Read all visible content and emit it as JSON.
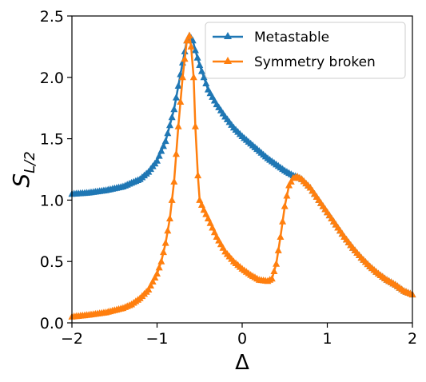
{
  "chart_data": {
    "type": "line",
    "title": "",
    "xlabel": "Δ",
    "ylabel_main": "S",
    "ylabel_sub": "L/2",
    "xlim": [
      -2,
      2
    ],
    "ylim": [
      0,
      2.5
    ],
    "grid": false,
    "legend_position": "top-right",
    "x_ticks": [
      {
        "value": -2,
        "label": "−2"
      },
      {
        "value": -1,
        "label": "−1"
      },
      {
        "value": 0,
        "label": "0"
      },
      {
        "value": 1,
        "label": "1"
      },
      {
        "value": 2,
        "label": "2"
      }
    ],
    "y_ticks": [
      {
        "value": 0,
        "label": "0.0"
      },
      {
        "value": 0.5,
        "label": "0.5"
      },
      {
        "value": 1.0,
        "label": "1.0"
      },
      {
        "value": 1.5,
        "label": "1.5"
      },
      {
        "value": 2.0,
        "label": "2.0"
      },
      {
        "value": 2.5,
        "label": "2.5"
      }
    ],
    "series": [
      {
        "name": "Metastable",
        "color": "#1f77b4",
        "marker": "triangle-up",
        "points": [
          [
            -2.0,
            1.05
          ],
          [
            -1.8,
            1.06
          ],
          [
            -1.6,
            1.08
          ],
          [
            -1.4,
            1.11
          ],
          [
            -1.2,
            1.17
          ],
          [
            -1.1,
            1.23
          ],
          [
            -1.0,
            1.32
          ],
          [
            -0.9,
            1.48
          ],
          [
            -0.8,
            1.74
          ],
          [
            -0.75,
            1.93
          ],
          [
            -0.7,
            2.12
          ],
          [
            -0.65,
            2.3
          ],
          [
            -0.62,
            2.34
          ],
          [
            -0.58,
            2.3
          ],
          [
            -0.55,
            2.22
          ],
          [
            -0.5,
            2.1
          ],
          [
            -0.4,
            1.9
          ],
          [
            -0.3,
            1.78
          ],
          [
            -0.2,
            1.68
          ],
          [
            -0.1,
            1.59
          ],
          [
            0.0,
            1.52
          ],
          [
            0.1,
            1.46
          ],
          [
            0.2,
            1.4
          ],
          [
            0.3,
            1.34
          ],
          [
            0.4,
            1.29
          ],
          [
            0.5,
            1.24
          ],
          [
            0.6,
            1.2
          ],
          [
            0.65,
            1.19
          ],
          [
            0.7,
            1.17
          ],
          [
            0.8,
            1.1
          ],
          [
            0.9,
            1.0
          ],
          [
            1.0,
            0.9
          ],
          [
            1.1,
            0.8
          ],
          [
            1.2,
            0.7
          ],
          [
            1.3,
            0.61
          ],
          [
            1.4,
            0.53
          ],
          [
            1.5,
            0.46
          ],
          [
            1.6,
            0.4
          ],
          [
            1.7,
            0.35
          ],
          [
            1.8,
            0.31
          ],
          [
            1.9,
            0.26
          ],
          [
            2.0,
            0.23
          ]
        ]
      },
      {
        "name": "Symmetry broken",
        "color": "#ff7f0e",
        "marker": "triangle-up",
        "points": [
          [
            -2.0,
            0.05
          ],
          [
            -1.8,
            0.065
          ],
          [
            -1.6,
            0.085
          ],
          [
            -1.4,
            0.12
          ],
          [
            -1.3,
            0.15
          ],
          [
            -1.2,
            0.2
          ],
          [
            -1.1,
            0.27
          ],
          [
            -1.0,
            0.4
          ],
          [
            -0.95,
            0.5
          ],
          [
            -0.9,
            0.65
          ],
          [
            -0.85,
            0.85
          ],
          [
            -0.8,
            1.15
          ],
          [
            -0.75,
            1.6
          ],
          [
            -0.7,
            2.0
          ],
          [
            -0.65,
            2.3
          ],
          [
            -0.62,
            2.34
          ],
          [
            -0.6,
            2.25
          ],
          [
            -0.57,
            2.0
          ],
          [
            -0.55,
            1.6
          ],
          [
            -0.52,
            1.2
          ],
          [
            -0.5,
            1.0
          ],
          [
            -0.45,
            0.92
          ],
          [
            -0.4,
            0.85
          ],
          [
            -0.3,
            0.7
          ],
          [
            -0.2,
            0.58
          ],
          [
            -0.1,
            0.5
          ],
          [
            0.0,
            0.44
          ],
          [
            0.1,
            0.39
          ],
          [
            0.2,
            0.35
          ],
          [
            0.3,
            0.34
          ],
          [
            0.35,
            0.36
          ],
          [
            0.4,
            0.48
          ],
          [
            0.45,
            0.7
          ],
          [
            0.5,
            0.95
          ],
          [
            0.55,
            1.12
          ],
          [
            0.6,
            1.18
          ],
          [
            0.65,
            1.19
          ],
          [
            0.7,
            1.17
          ],
          [
            0.8,
            1.1
          ],
          [
            0.9,
            1.0
          ],
          [
            1.0,
            0.9
          ],
          [
            1.1,
            0.8
          ],
          [
            1.2,
            0.7
          ],
          [
            1.3,
            0.61
          ],
          [
            1.4,
            0.53
          ],
          [
            1.5,
            0.46
          ],
          [
            1.6,
            0.4
          ],
          [
            1.7,
            0.35
          ],
          [
            1.8,
            0.31
          ],
          [
            1.9,
            0.26
          ],
          [
            2.0,
            0.23
          ]
        ]
      }
    ]
  }
}
